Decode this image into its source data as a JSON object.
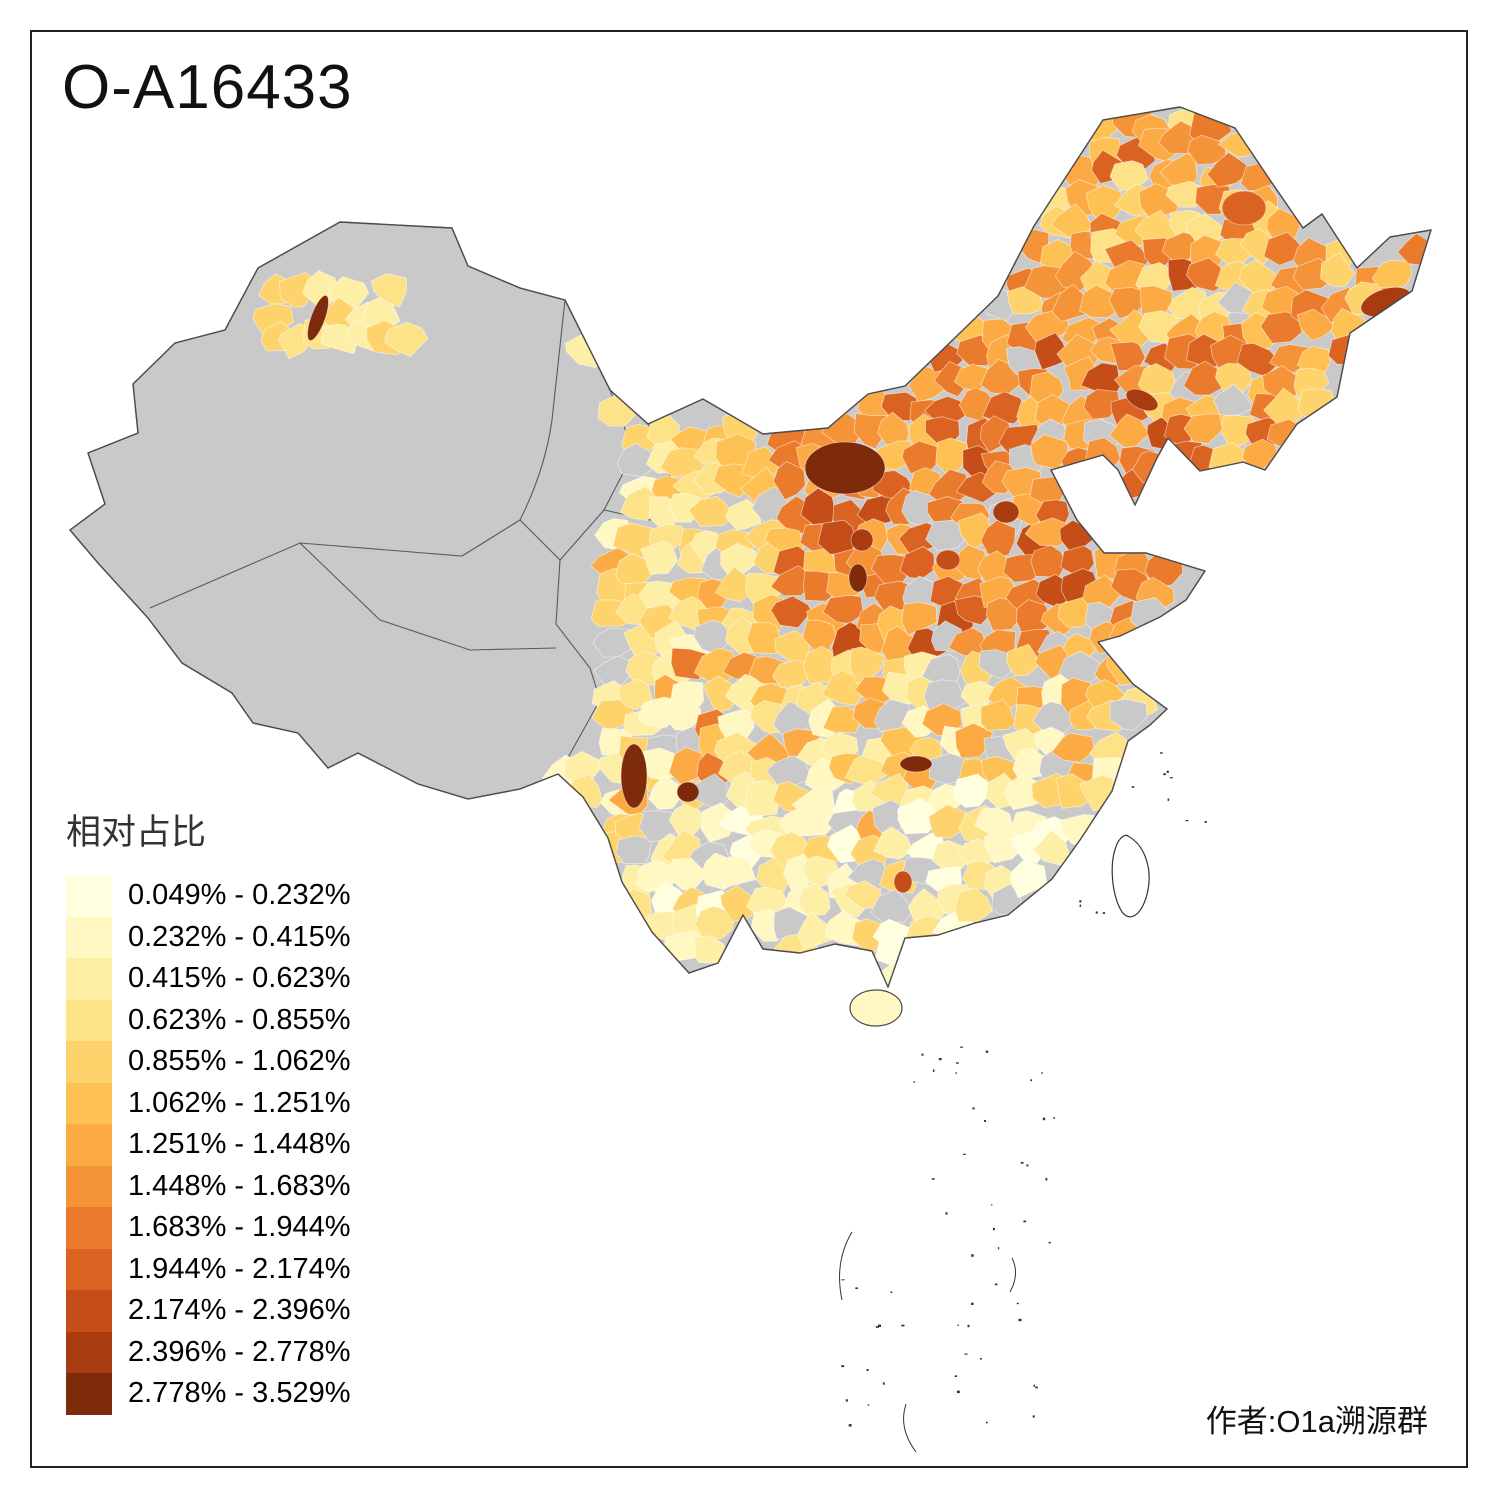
{
  "title": "O-A16433",
  "author": "作者:O1a溯源群",
  "legend": {
    "title": "相对占比",
    "items": [
      {
        "range": "0.049% - 0.232%",
        "color": "#FFFFE0"
      },
      {
        "range": "0.232% - 0.415%",
        "color": "#FFF8C2"
      },
      {
        "range": "0.415% - 0.623%",
        "color": "#FEEFA6"
      },
      {
        "range": "0.623% - 0.855%",
        "color": "#FEE288"
      },
      {
        "range": "0.855% - 1.062%",
        "color": "#FED36C"
      },
      {
        "range": "1.062% - 1.251%",
        "color": "#FEC154"
      },
      {
        "range": "1.251% - 1.448%",
        "color": "#FCAB44"
      },
      {
        "range": "1.448% - 1.683%",
        "color": "#F59338"
      },
      {
        "range": "1.683% - 1.944%",
        "color": "#EA7A2C"
      },
      {
        "range": "1.944% - 2.174%",
        "color": "#DB6322"
      },
      {
        "range": "2.174% - 2.396%",
        "color": "#C44D18"
      },
      {
        "range": "2.396% - 2.778%",
        "color": "#A93B10"
      },
      {
        "range": "2.778% - 3.529%",
        "color": "#7E2B0B"
      }
    ]
  },
  "map": {
    "no_data_color": "#C9C9C9",
    "land_border_color": "#4D4D4D",
    "sea_color": "#FFFFFF"
  }
}
